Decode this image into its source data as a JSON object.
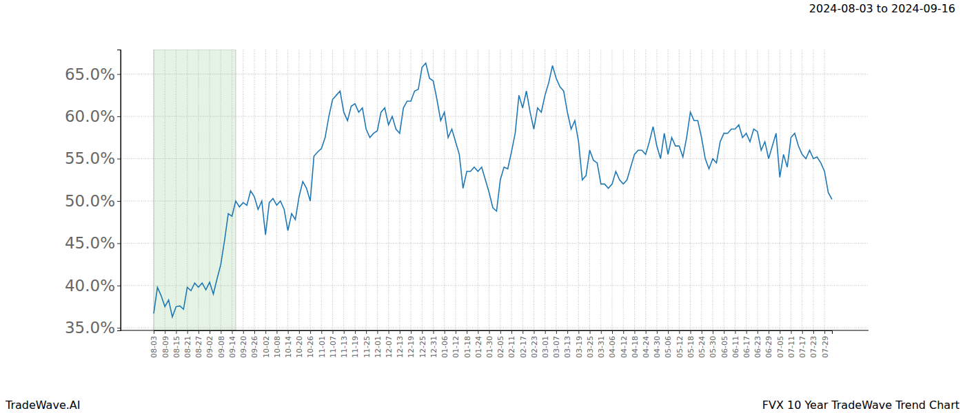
{
  "chart_data": {
    "type": "line",
    "title": "2024-08-03 to 2024-09-16",
    "annotations": [
      "TradeWave.AI",
      "FVX 10 Year TradeWave Trend Chart"
    ],
    "categories": [
      "08-03",
      null,
      null,
      "08-09",
      null,
      null,
      "08-15",
      null,
      null,
      "08-21",
      null,
      null,
      "08-27",
      null,
      null,
      "09-02",
      null,
      null,
      "09-08",
      null,
      null,
      "09-14",
      null,
      null,
      "09-20",
      null,
      null,
      "09-26",
      null,
      null,
      "10-02",
      null,
      null,
      "10-08",
      null,
      null,
      "10-14",
      null,
      null,
      "10-20",
      null,
      null,
      "10-26",
      null,
      null,
      "11-01",
      null,
      null,
      "11-07",
      null,
      null,
      "11-13",
      null,
      null,
      "11-19",
      null,
      null,
      "11-25",
      null,
      null,
      "12-01",
      null,
      null,
      "12-07",
      null,
      null,
      "12-13",
      null,
      null,
      "12-19",
      null,
      null,
      "12-25",
      null,
      null,
      "12-31",
      null,
      null,
      "01-06",
      null,
      null,
      "01-12",
      null,
      null,
      "01-18",
      null,
      null,
      "01-24",
      null,
      null,
      "01-30",
      null,
      null,
      "02-05",
      null,
      null,
      "02-11",
      null,
      null,
      "02-17",
      null,
      null,
      "02-23",
      null,
      null,
      "03-01",
      null,
      null,
      "03-07",
      null,
      null,
      "03-13",
      null,
      null,
      "03-19",
      null,
      null,
      "03-25",
      null,
      null,
      "03-31",
      null,
      null,
      "04-06",
      null,
      null,
      "04-12",
      null,
      null,
      "04-18",
      null,
      null,
      "04-24",
      null,
      null,
      "04-30",
      null,
      null,
      "05-06",
      null,
      null,
      "05-12",
      null,
      null,
      "05-18",
      null,
      null,
      "05-24",
      null,
      null,
      "05-30",
      null,
      null,
      "06-05",
      null,
      null,
      "06-11",
      null,
      null,
      "06-17",
      null,
      null,
      "06-23",
      null,
      null,
      "06-29",
      null,
      null,
      "07-05",
      null,
      null,
      "07-11",
      null,
      null,
      "07-17",
      null,
      null,
      "07-23",
      null,
      null,
      "07-29",
      null,
      null
    ],
    "values": [
      36.7,
      39.8,
      38.8,
      37.5,
      38.3,
      36.3,
      37.5,
      37.6,
      37.2,
      39.8,
      39.4,
      40.3,
      39.8,
      40.3,
      39.5,
      40.4,
      39.0,
      40.8,
      42.5,
      45.3,
      48.5,
      48.2,
      50.0,
      49.3,
      49.8,
      49.5,
      51.2,
      50.5,
      49.0,
      50.0,
      46.0,
      49.8,
      50.3,
      49.5,
      50.0,
      49.0,
      46.5,
      48.5,
      47.8,
      50.5,
      52.3,
      51.5,
      50.0,
      55.3,
      55.8,
      56.2,
      57.5,
      60.0,
      62.0,
      62.5,
      63.0,
      60.5,
      59.5,
      61.2,
      61.5,
      60.5,
      61.0,
      58.5,
      57.5,
      58.0,
      58.3,
      60.5,
      61.0,
      59.0,
      60.0,
      58.5,
      58.0,
      61.0,
      61.8,
      61.8,
      63.0,
      63.2,
      65.8,
      66.3,
      64.5,
      64.2,
      62.0,
      59.5,
      60.5,
      57.5,
      58.5,
      57.0,
      55.5,
      51.5,
      53.5,
      53.5,
      54.0,
      53.5,
      54.0,
      52.5,
      51.0,
      49.2,
      48.8,
      52.5,
      54.0,
      53.8,
      55.8,
      58.0,
      62.5,
      61.0,
      63.0,
      60.5,
      58.5,
      61.0,
      60.5,
      62.5,
      64.0,
      66.0,
      64.5,
      63.5,
      63.0,
      60.5,
      58.5,
      59.5,
      57.0,
      52.5,
      53.0,
      56.0,
      54.8,
      54.5,
      52.0,
      52.0,
      51.5,
      52.0,
      53.5,
      52.5,
      52.0,
      52.5,
      54.0,
      55.5,
      56.0,
      56.0,
      55.5,
      57.0,
      58.8,
      56.5,
      55.0,
      58.0,
      55.5,
      57.5,
      56.5,
      56.5,
      55.2,
      57.5,
      60.5,
      59.5,
      59.5,
      57.5,
      55.0,
      53.8,
      55.0,
      54.5,
      57.0,
      58.0,
      58.0,
      58.5,
      58.5,
      59.0,
      57.5,
      58.0,
      57.0,
      58.5,
      58.2,
      56.0,
      57.0,
      55.0,
      56.5,
      58.0,
      52.8,
      55.5,
      54.0,
      57.5,
      58.0,
      56.5,
      55.5,
      55.0,
      56.0,
      55.0,
      55.2,
      54.5,
      53.5,
      51.0,
      50.2
    ],
    "color": "#1f77b4",
    "shaded_range": [
      0,
      22
    ],
    "ylim": [
      34.7,
      67.9
    ],
    "yticks": [
      {
        "value": 35,
        "label": "35.0%"
      },
      {
        "value": 40,
        "label": "40.0%"
      },
      {
        "value": 45,
        "label": "45.0%"
      },
      {
        "value": 50,
        "label": "50.0%"
      },
      {
        "value": 55,
        "label": "55.0%"
      },
      {
        "value": 60,
        "label": "60.0%"
      },
      {
        "value": 65,
        "label": "65.0%"
      }
    ],
    "grid": true
  }
}
